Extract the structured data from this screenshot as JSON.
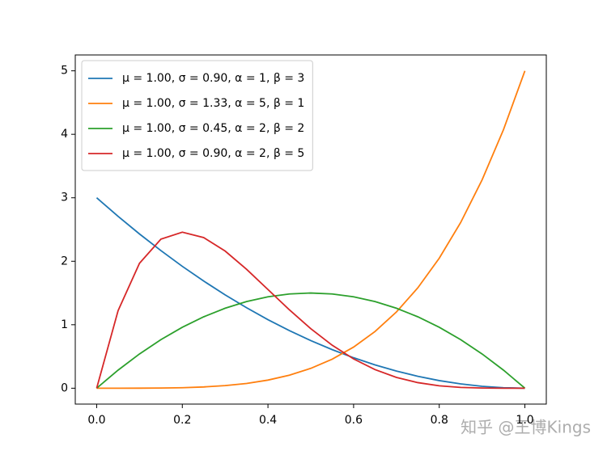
{
  "chart_data": {
    "type": "line",
    "x": [
      0,
      0.05,
      0.1,
      0.15,
      0.2,
      0.25,
      0.3,
      0.35,
      0.4,
      0.45,
      0.5,
      0.55,
      0.6,
      0.65,
      0.7,
      0.75,
      0.8,
      0.85,
      0.9,
      0.95,
      1
    ],
    "series": [
      {
        "name": "μ = 1.00,  σ = 0.90,  α = 1,  β = 3",
        "color": "#1f77b4",
        "values": [
          3,
          2.708,
          2.43,
          2.168,
          1.92,
          1.688,
          1.47,
          1.268,
          1.08,
          0.908,
          0.75,
          0.608,
          0.48,
          0.368,
          0.27,
          0.188,
          0.12,
          0.068,
          0.03,
          0.008,
          0
        ]
      },
      {
        "name": "μ = 1.00,  σ = 1.33,  α = 5,  β = 1",
        "color": "#ff7f0e",
        "values": [
          0,
          0,
          0.001,
          0.003,
          0.008,
          0.02,
          0.041,
          0.075,
          0.128,
          0.205,
          0.313,
          0.458,
          0.648,
          0.893,
          1.201,
          1.582,
          2.048,
          2.61,
          3.281,
          4.073,
          5
        ]
      },
      {
        "name": "μ = 1.00,  σ = 0.45,  α = 2,  β = 2",
        "color": "#2ca02c",
        "values": [
          0,
          0.285,
          0.54,
          0.765,
          0.96,
          1.125,
          1.26,
          1.365,
          1.44,
          1.485,
          1.5,
          1.485,
          1.44,
          1.365,
          1.26,
          1.125,
          0.96,
          0.765,
          0.54,
          0.285,
          0
        ]
      },
      {
        "name": "μ = 1.00,  σ = 0.90,  α = 2,  β = 5",
        "color": "#d62728",
        "values": [
          0,
          1.222,
          1.968,
          2.349,
          2.458,
          2.373,
          2.161,
          1.874,
          1.555,
          1.235,
          0.938,
          0.677,
          0.461,
          0.293,
          0.17,
          0.088,
          0.038,
          0.013,
          0.003,
          0,
          0
        ]
      }
    ],
    "xlim": [
      -0.05,
      1.05
    ],
    "ylim": [
      -0.25,
      5.25
    ],
    "xticks": [
      {
        "value": 0,
        "label": "0.0"
      },
      {
        "value": 0.2,
        "label": "0.2"
      },
      {
        "value": 0.4,
        "label": "0.4"
      },
      {
        "value": 0.6,
        "label": "0.6"
      },
      {
        "value": 0.8,
        "label": "0.8"
      },
      {
        "value": 1,
        "label": "1.0"
      }
    ],
    "yticks": [
      0,
      1,
      2,
      3,
      4,
      5
    ],
    "legend": "upper left",
    "watermark": "知乎 @王博Kings"
  }
}
